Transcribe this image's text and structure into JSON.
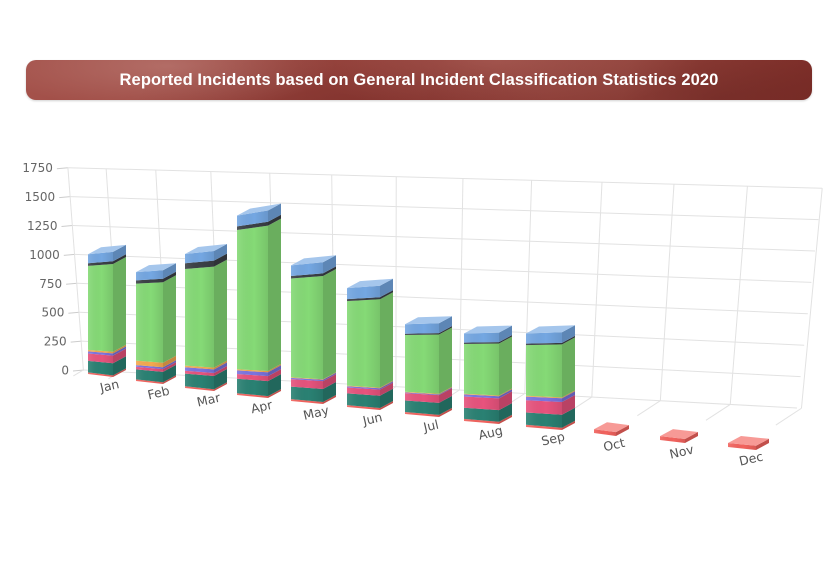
{
  "title": {
    "text": "Reported Incidents based on General Incident Classification Statistics 2020"
  },
  "chart_data": {
    "type": "bar",
    "subtype": "3d-stacked-column",
    "title": "Reported Incidents based on General Incident Classification Statistics 2020",
    "xlabel": "",
    "ylabel": "",
    "ylim": [
      0,
      1750
    ],
    "yticks": [
      0,
      250,
      500,
      750,
      1000,
      1250,
      1500,
      1750
    ],
    "grid": true,
    "legend": "none",
    "categories": [
      "Jan",
      "Feb",
      "Mar",
      "Apr",
      "May",
      "Jun",
      "Jul",
      "Aug",
      "Sep",
      "Oct",
      "Nov",
      "Dec"
    ],
    "series": [
      {
        "name": "salmon",
        "color": "#F2635E",
        "values": [
          15,
          15,
          15,
          15,
          15,
          15,
          15,
          15,
          15,
          25,
          25,
          25
        ]
      },
      {
        "name": "teal",
        "color": "#2A8173",
        "values": [
          110,
          90,
          110,
          120,
          100,
          90,
          85,
          80,
          85,
          0,
          0,
          0
        ]
      },
      {
        "name": "pink",
        "color": "#E7537D",
        "values": [
          70,
          25,
          25,
          40,
          60,
          45,
          55,
          80,
          85,
          0,
          0,
          0
        ]
      },
      {
        "name": "violet",
        "color": "#7B74E0",
        "values": [
          20,
          15,
          30,
          30,
          10,
          10,
          5,
          15,
          25,
          0,
          0,
          0
        ]
      },
      {
        "name": "orange",
        "color": "#F5A94F",
        "values": [
          15,
          40,
          15,
          10,
          5,
          5,
          5,
          5,
          5,
          0,
          0,
          0
        ]
      },
      {
        "name": "green",
        "color": "#85DA76",
        "values": [
          800,
          700,
          840,
          1160,
          790,
          650,
          420,
          355,
          350,
          0,
          0,
          0
        ]
      },
      {
        "name": "dark",
        "color": "#3B4046",
        "values": [
          25,
          30,
          50,
          30,
          20,
          15,
          10,
          10,
          10,
          0,
          0,
          0
        ]
      },
      {
        "name": "blue",
        "color": "#74A7E2",
        "values": [
          85,
          75,
          80,
          90,
          85,
          85,
          70,
          65,
          70,
          0,
          0,
          0
        ]
      }
    ],
    "totals": [
      1140,
      990,
      1165,
      1495,
      1085,
      915,
      665,
      625,
      645,
      25,
      25,
      25
    ]
  },
  "colors": {
    "grid": "#e2e2e2",
    "axis_label": "#666666",
    "month_label": "#555555",
    "banner_bg": "#8e3a34",
    "banner_text": "#ffffff"
  }
}
